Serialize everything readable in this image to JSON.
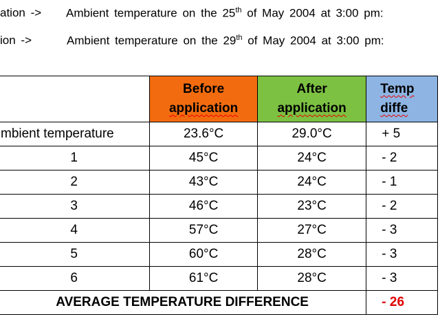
{
  "intro": [
    {
      "prefix": "ation ->",
      "text": "Ambient temperature on the 25",
      "sup": "th",
      "rest": " of May 2004 at 3:00 pm:"
    },
    {
      "prefix": "ion ->",
      "text": "Ambient temperature on the 29",
      "sup": "th",
      "rest": " of May 2004 at 3:00 pm:"
    }
  ],
  "table": {
    "header": [
      [
        "Before",
        "application"
      ],
      [
        "After",
        "application"
      ],
      [
        "Temp",
        "diffe"
      ]
    ],
    "rows": [
      [
        "mbient temperature",
        "23.6°C",
        "29.0°C",
        "+ 5"
      ],
      [
        "1",
        "45°C",
        "24°C",
        "- 2"
      ],
      [
        "2",
        "43°C",
        "24°C",
        "- 1"
      ],
      [
        "3",
        "46°C",
        "23°C",
        "- 2"
      ],
      [
        "4",
        "57°C",
        "27°C",
        "- 3"
      ],
      [
        "5",
        "60°C",
        "28°C",
        "- 3"
      ],
      [
        "6",
        "61°C",
        "28°C",
        "- 3"
      ]
    ],
    "footer": {
      "label": "AVERAGE TEMPERATURE DIFFERENCE",
      "value": "- 26"
    }
  }
}
